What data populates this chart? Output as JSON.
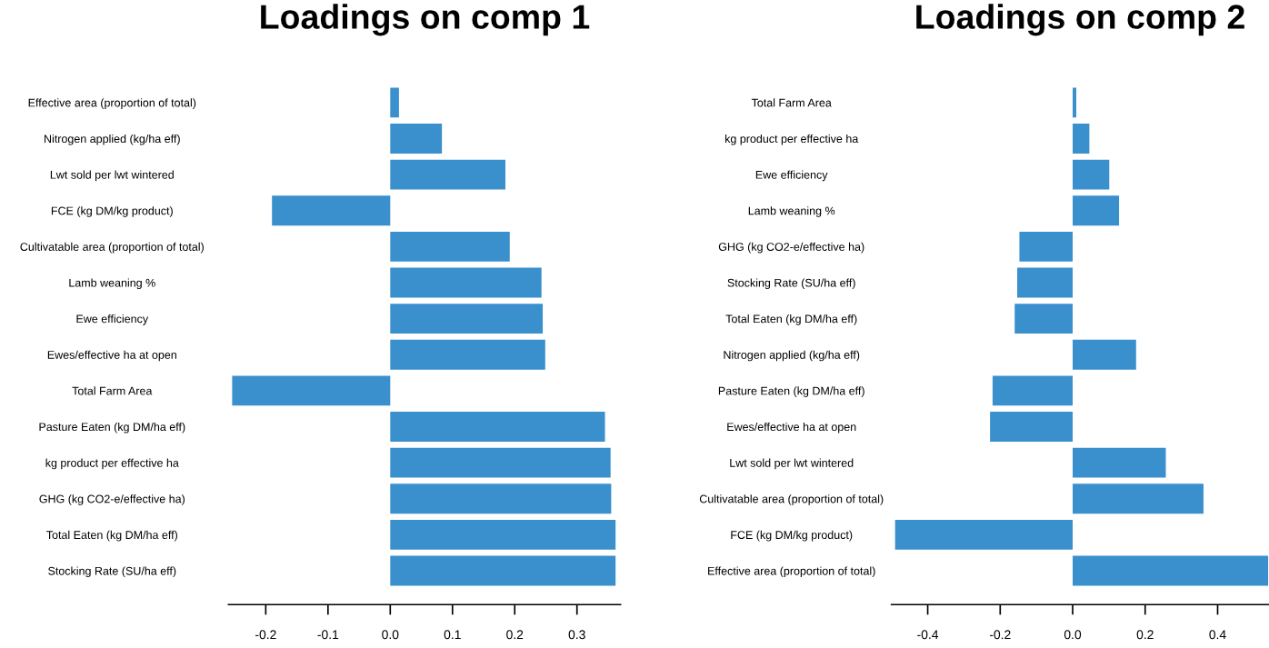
{
  "chart_data": [
    {
      "type": "bar",
      "orientation": "horizontal",
      "title": "Loadings on comp 1",
      "categories": [
        "Effective area (proportion of total)",
        "Nitrogen applied (kg/ha eff)",
        "Lwt sold per lwt wintered",
        "FCE (kg DM/kg product)",
        "Cultivatable area (proportion of total)",
        "Lamb weaning %",
        "Ewe efficiency",
        "Ewes/effective ha at open",
        "Total Farm Area",
        "Pasture Eaten (kg DM/ha eff)",
        "kg product per effective ha",
        "GHG (kg CO2-e/effective ha)",
        "Total Eaten (kg DM/ha eff)",
        "Stocking Rate (SU/ha eff)"
      ],
      "values": [
        0.014,
        0.083,
        0.185,
        -0.19,
        0.192,
        0.243,
        0.245,
        0.249,
        -0.254,
        0.345,
        0.354,
        0.355,
        0.362,
        0.362
      ],
      "color": "#3a8fcd",
      "xlim": [
        -0.26,
        0.37
      ],
      "xticks": [
        -0.2,
        -0.1,
        {
          "value": 0,
          "label": "0.0"
        },
        0.1,
        0.2,
        0.3
      ],
      "grid": false
    },
    {
      "type": "bar",
      "orientation": "horizontal",
      "title": "Loadings on comp 2",
      "categories": [
        "Total Farm Area",
        "kg product per effective ha",
        "Ewe efficiency",
        "Lamb weaning %",
        "GHG (kg CO2-e/effective ha)",
        "Stocking Rate (SU/ha eff)",
        "Total Eaten (kg DM/ha eff)",
        "Nitrogen applied (kg/ha eff)",
        "Pasture Eaten (kg DM/ha eff)",
        "Ewes/effective ha at open",
        "Lwt sold per lwt wintered",
        "Cultivatable area (proportion of total)",
        "FCE (kg DM/kg product)",
        "Effective area (proportion of total)"
      ],
      "values": [
        0.01,
        0.046,
        0.101,
        0.128,
        -0.147,
        -0.153,
        -0.16,
        0.175,
        -0.221,
        -0.228,
        0.257,
        0.361,
        -0.49,
        0.54
      ],
      "color": "#3a8fcd",
      "xlim": [
        -0.5,
        0.54
      ],
      "xticks": [
        -0.4,
        -0.2,
        {
          "value": 0,
          "label": "0.0"
        },
        0.2,
        0.4
      ],
      "grid": false
    }
  ]
}
